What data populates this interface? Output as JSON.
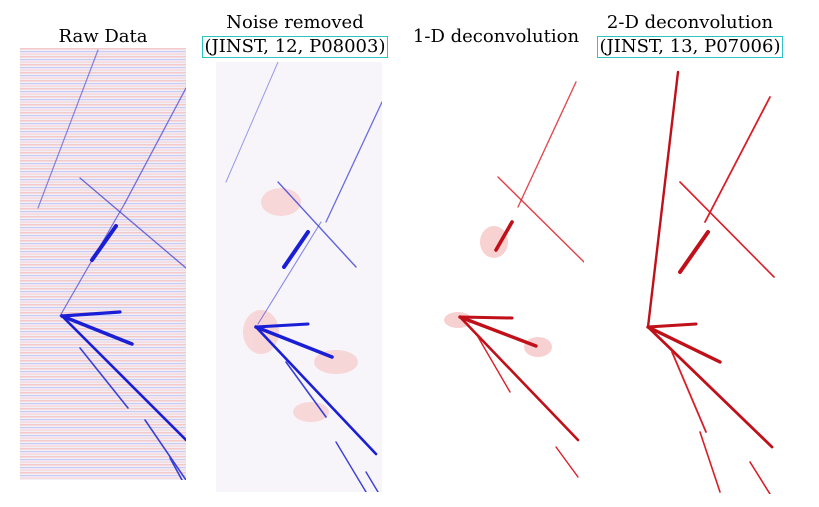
{
  "panels": [
    {
      "title": "Raw Data",
      "citation": ""
    },
    {
      "title": "Noise removed",
      "citation": "(JINST, 12, P08003)"
    },
    {
      "title": "1-D deconvolution",
      "citation": ""
    },
    {
      "title": "2-D deconvolution",
      "citation": "(JINST, 13, P07006)"
    }
  ],
  "colors": {
    "blue": "#1a1fd6",
    "red": "#c0101a",
    "citation_border": "#2ec4c4"
  }
}
